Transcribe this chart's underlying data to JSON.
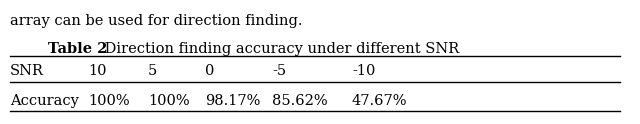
{
  "title_bold": "Table 2",
  "title_normal": " Direction finding accuracy under different SNR",
  "header_row": [
    "SNR",
    "10",
    "5",
    "0",
    "-5",
    "-10"
  ],
  "data_row": [
    "Accuracy",
    "100%",
    "100%",
    "98.17%",
    "85.62%",
    "47.67%"
  ],
  "intro_text": "array can be used for direction finding.",
  "background_color": "#ffffff",
  "text_color": "#000000",
  "font_size": 10.5,
  "title_font_size": 10.5
}
